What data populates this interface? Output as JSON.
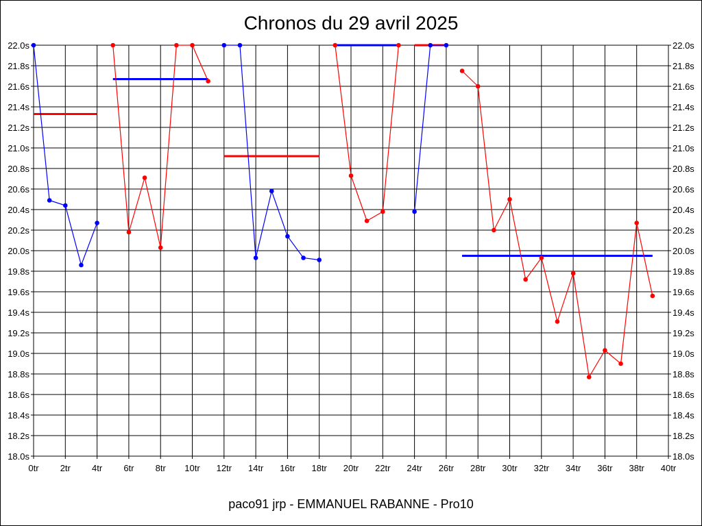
{
  "chart_data": {
    "type": "line",
    "title": "Chronos du 29 avril 2025",
    "footer": "paco91 jrp - EMMANUEL RABANNE - Pro10",
    "xlim": [
      0,
      40
    ],
    "ylim": [
      18.0,
      22.0
    ],
    "x_ticks": [
      0,
      2,
      4,
      6,
      8,
      10,
      12,
      14,
      16,
      18,
      20,
      22,
      24,
      26,
      28,
      30,
      32,
      34,
      36,
      38,
      40
    ],
    "x_tick_suffix": "tr",
    "y_ticks": [
      18.0,
      18.2,
      18.4,
      18.6,
      18.8,
      19.0,
      19.2,
      19.4,
      19.6,
      19.8,
      20.0,
      20.2,
      20.4,
      20.6,
      20.8,
      21.0,
      21.2,
      21.4,
      21.6,
      21.8,
      22.0
    ],
    "y_tick_suffix": "s",
    "grid": true,
    "colors": {
      "red": "#ff0000",
      "blue": "#0000ff"
    },
    "series": [
      {
        "color": "#0000ff",
        "points": [
          [
            0,
            22.0
          ],
          [
            1,
            20.49
          ],
          [
            2,
            20.44
          ],
          [
            3,
            19.86
          ],
          [
            4,
            20.27
          ]
        ]
      },
      {
        "color": "#ff0000",
        "points": [
          [
            5,
            22.0
          ],
          [
            6,
            20.18
          ],
          [
            7,
            20.71
          ],
          [
            8,
            20.03
          ],
          [
            9,
            22.0
          ],
          [
            10,
            22.0
          ],
          [
            11,
            21.65
          ]
        ]
      },
      {
        "color": "#0000ff",
        "points": [
          [
            12,
            22.0
          ],
          [
            13,
            22.0
          ],
          [
            14,
            19.93
          ],
          [
            15,
            20.58
          ],
          [
            16,
            20.14
          ],
          [
            17,
            19.93
          ],
          [
            18,
            19.91
          ]
        ]
      },
      {
        "color": "#ff0000",
        "points": [
          [
            19,
            22.0
          ],
          [
            20,
            20.73
          ],
          [
            21,
            20.29
          ],
          [
            22,
            20.38
          ],
          [
            23,
            22.0
          ]
        ]
      },
      {
        "color": "#0000ff",
        "points": [
          [
            24,
            20.38
          ],
          [
            25,
            22.0
          ],
          [
            26,
            22.0
          ]
        ]
      },
      {
        "color": "#ff0000",
        "points": [
          [
            27,
            21.75
          ],
          [
            28,
            21.6
          ],
          [
            29,
            20.2
          ],
          [
            30,
            20.5
          ],
          [
            31,
            19.72
          ],
          [
            32,
            19.93
          ],
          [
            33,
            19.31
          ],
          [
            34,
            19.78
          ],
          [
            35,
            18.77
          ],
          [
            36,
            19.03
          ],
          [
            37,
            18.9
          ],
          [
            38,
            20.27
          ],
          [
            39,
            19.56
          ]
        ]
      }
    ],
    "averages": [
      {
        "color": "#ff0000",
        "x": [
          0,
          4
        ],
        "y": 21.33
      },
      {
        "color": "#0000ff",
        "x": [
          5,
          11
        ],
        "y": 21.67
      },
      {
        "color": "#ff0000",
        "x": [
          12,
          18
        ],
        "y": 20.92
      },
      {
        "color": "#0000ff",
        "x": [
          19,
          23
        ],
        "y": 22.0
      },
      {
        "color": "#ff0000",
        "x": [
          24,
          26
        ],
        "y": 22.0
      },
      {
        "color": "#0000ff",
        "x": [
          27,
          39
        ],
        "y": 19.95
      }
    ]
  }
}
